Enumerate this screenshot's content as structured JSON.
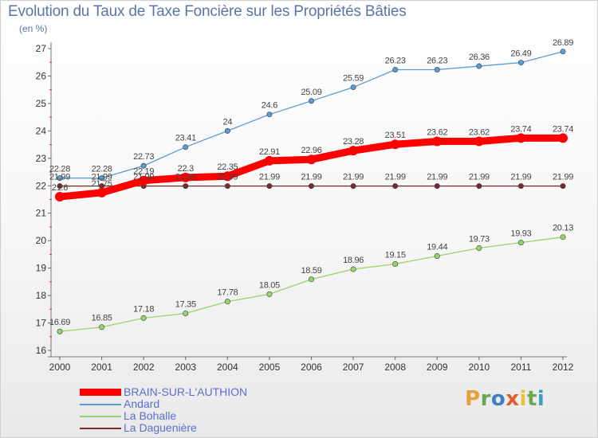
{
  "title": "Evolution du Taux de Taxe Foncière sur les Propriétés Bâties",
  "unit_label": "(en %)",
  "logo": {
    "text": "Proxiti",
    "letters": [
      {
        "ch": "P",
        "color": "#e8a03a"
      },
      {
        "ch": "r",
        "color": "#6aa84f"
      },
      {
        "ch": "o",
        "color": "#3f7fbf"
      },
      {
        "ch": "x",
        "color": "#e35c2e"
      },
      {
        "ch": "i",
        "color": "#e8c23a"
      },
      {
        "ch": "t",
        "color": "#6aa84f"
      },
      {
        "ch": "i",
        "color": "#3f9fbf"
      }
    ]
  },
  "chart_data": {
    "type": "line",
    "title": "Evolution du Taux de Taxe Foncière sur les Propriétés Bâties",
    "ylabel": "(en %)",
    "xlabel": "",
    "x": [
      "2000",
      "2001",
      "2002",
      "2003",
      "2004",
      "2005",
      "2006",
      "2007",
      "2008",
      "2009",
      "2010",
      "2011",
      "2012"
    ],
    "ylim": [
      16,
      27
    ],
    "yticks": [
      16,
      17,
      18,
      19,
      20,
      21,
      22,
      23,
      24,
      25,
      26,
      27
    ],
    "grid": false,
    "legend_position": "bottom-left",
    "series": [
      {
        "name": "BRAIN-SUR-L'AUTHION",
        "color": "#ff0000",
        "width": "thick",
        "values": [
          21.6,
          21.75,
          22.19,
          22.3,
          22.35,
          22.91,
          22.96,
          23.28,
          23.51,
          23.62,
          23.62,
          23.74,
          23.74
        ],
        "labels": [
          "21.6",
          "21.75",
          "22.19",
          "22.3",
          "22.35",
          "22.91",
          "22.96",
          "23.28",
          "23.51",
          "23.62",
          "23.62",
          "23.74",
          "23.74"
        ]
      },
      {
        "name": "Andard",
        "color": "#5b9bd0",
        "width": "thin",
        "values": [
          22.28,
          22.28,
          22.73,
          23.41,
          24,
          24.6,
          25.09,
          25.59,
          26.23,
          26.23,
          26.36,
          26.49,
          26.89
        ],
        "labels": [
          "22.28",
          "22.28",
          "22.73",
          "23.41",
          "24",
          "24.6",
          "25.09",
          "25.59",
          "26.23",
          "26.23",
          "26.36",
          "26.49",
          "26.89"
        ]
      },
      {
        "name": "La Bohalle",
        "color": "#99d36b",
        "width": "thin",
        "values": [
          16.69,
          16.85,
          17.18,
          17.35,
          17.78,
          18.05,
          18.59,
          18.96,
          19.15,
          19.44,
          19.73,
          19.93,
          20.13
        ],
        "labels": [
          "16.69",
          "16.85",
          "17.18",
          "17.35",
          "17.78",
          "18.05",
          "18.59",
          "18.96",
          "19.15",
          "19.44",
          "19.73",
          "19.93",
          "20.13"
        ]
      },
      {
        "name": "La Daguenière",
        "color": "#7a2a2a",
        "width": "thin",
        "values": [
          21.99,
          21.99,
          21.99,
          21.99,
          21.99,
          21.99,
          21.99,
          21.99,
          21.99,
          21.99,
          21.99,
          21.99,
          21.99
        ],
        "labels": [
          "21.99",
          "21.99",
          "21.99",
          "21.99",
          "21.99",
          "21.99",
          "21.99",
          "21.99",
          "21.99",
          "21.99",
          "21.99",
          "21.99",
          "21.99"
        ]
      }
    ]
  }
}
